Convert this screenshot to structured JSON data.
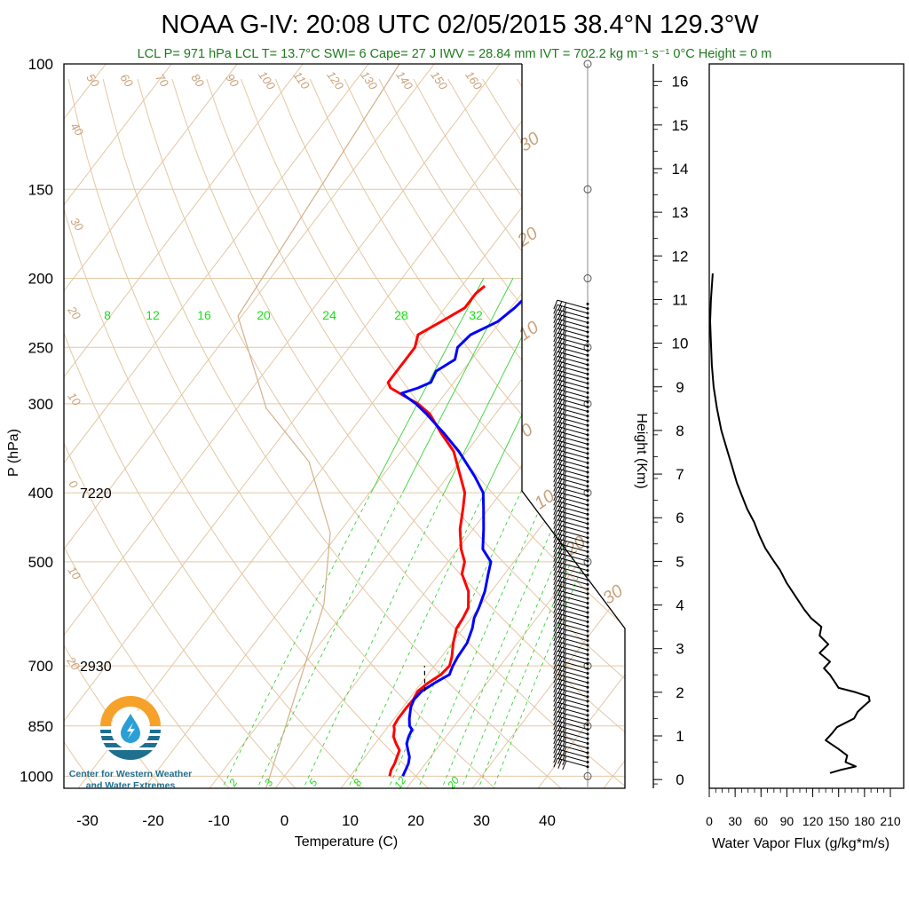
{
  "title": "NOAA G-IV: 20:08 UTC 02/05/2015  38.4°N 129.3°W",
  "subtitle": "LCL P= 971 hPa  LCL T= 13.7°C  SWI= 6  Cape= 27 J  IWV = 28.84 mm  IVT = 702.2 kg m⁻¹ s⁻¹  0°C Height = 0 m",
  "logo": {
    "line1": "Center for Western Weather",
    "line2": "and Water Extremes"
  },
  "chart_data": [
    {
      "type": "line",
      "name": "skew-T log-P sounding",
      "xlabel": "Temperature (C)",
      "ylabel": "P (hPa)",
      "xlim": [
        -33,
        50
      ],
      "ylim": [
        1030,
        100
      ],
      "y_scale": "log",
      "x_ticks": [
        -30,
        -20,
        -10,
        0,
        10,
        20,
        30,
        40
      ],
      "y_ticks": [
        100,
        150,
        200,
        250,
        300,
        400,
        500,
        700,
        850,
        1000
      ],
      "height_annotations": [
        {
          "p": 400,
          "text": "7220"
        },
        {
          "p": 700,
          "text": "2930"
        }
      ],
      "dry_adiabat_labels": [
        "50",
        "60",
        "70",
        "80",
        "90",
        "100",
        "110",
        "120",
        "130",
        "140",
        "150",
        "160",
        "40",
        "30",
        "20",
        "10",
        "0",
        "10",
        "20"
      ],
      "isotherm_labels": [
        "30",
        "20",
        "10",
        "0",
        "10",
        "20",
        "30"
      ],
      "mixing_ratio_labels_top": [
        "8",
        "12",
        "16",
        "20",
        "24",
        "28",
        "32"
      ],
      "mixing_ratio_labels_bottom": [
        "2",
        "3",
        "5",
        "8",
        "12",
        "20"
      ],
      "series": [
        {
          "name": "temperature",
          "color": "#ff0000",
          "p": [
            1000,
            980,
            960,
            940,
            920,
            900,
            880,
            860,
            850,
            830,
            800,
            780,
            760,
            740,
            720,
            700,
            680,
            650,
            620,
            600,
            580,
            550,
            520,
            500,
            480,
            450,
            420,
            400,
            380,
            350,
            330,
            310,
            300,
            290,
            285,
            280,
            270,
            260,
            250,
            240,
            230,
            220,
            210,
            205
          ],
          "t": [
            16,
            15.5,
            15.3,
            14.9,
            14.5,
            13.2,
            12,
            11.3,
            10.8,
            10.6,
            10.6,
            10.7,
            10.4,
            11,
            12,
            12.3,
            11.6,
            10.2,
            9,
            8.8,
            8.4,
            6.5,
            3.5,
            2.5,
            0.5,
            -2,
            -4,
            -5.5,
            -8,
            -12,
            -16,
            -20,
            -23,
            -27,
            -29,
            -30,
            -30,
            -30,
            -30,
            -31,
            -29,
            -27,
            -27,
            -26.5
          ]
        },
        {
          "name": "dewpoint",
          "color": "#0000ff",
          "p": [
            1000,
            980,
            960,
            940,
            920,
            900,
            880,
            860,
            850,
            830,
            800,
            780,
            760,
            740,
            720,
            700,
            680,
            650,
            620,
            600,
            580,
            550,
            520,
            500,
            480,
            450,
            420,
            400,
            380,
            350,
            330,
            310,
            300,
            290,
            285,
            280,
            270,
            260,
            250,
            240,
            230,
            220,
            210,
            205
          ],
          "t": [
            18,
            17.7,
            17.4,
            16.8,
            15.8,
            14.8,
            14.3,
            14,
            13.2,
            12.3,
            11.2,
            10.8,
            11,
            12,
            13.3,
            12.8,
            12.5,
            12.3,
            11.4,
            10.5,
            10,
            9,
            7.5,
            6.5,
            3.8,
            1.6,
            -0.9,
            -2.7,
            -5.8,
            -11.2,
            -15.6,
            -20.5,
            -23.3,
            -26.7,
            -24.8,
            -23.5,
            -24,
            -22.5,
            -23.5,
            -23,
            -20.4,
            -19.4,
            -18.8,
            -18
          ]
        },
        {
          "name": "parcel",
          "color": "#000000",
          "style": "dashed",
          "p": [
            760,
            700
          ],
          "t": [
            11.5,
            8.5
          ]
        }
      ],
      "wind_barbs": "barbs from 970 to 215 hPa; hollow circles = calm at 100, 150, 200, 250, 300, 400, 500, 700, 850, 1000 hPa"
    },
    {
      "type": "line",
      "name": "water vapor flux profile",
      "xlabel": "Water Vapor Flux (g/kg*m/s)",
      "ylabel": "Height (Km)",
      "xlim": [
        0,
        210
      ],
      "ylim": [
        -0.2,
        16.4
      ],
      "x_ticks": [
        0,
        30,
        60,
        90,
        120,
        150,
        180,
        210
      ],
      "y_ticks": [
        0,
        1,
        2,
        3,
        4,
        5,
        6,
        7,
        8,
        9,
        10,
        11,
        12,
        13,
        14,
        15,
        16
      ],
      "series": [
        {
          "name": "water vapor flux",
          "h": [
            0.15,
            0.22,
            0.3,
            0.4,
            0.55,
            0.7,
            0.9,
            1.05,
            1.2,
            1.4,
            1.55,
            1.7,
            1.8,
            1.9,
            2.0,
            2.1,
            2.25,
            2.4,
            2.55,
            2.7,
            2.9,
            3.1,
            3.3,
            3.5,
            3.7,
            3.9,
            4.2,
            4.5,
            4.8,
            5.0,
            5.3,
            5.6,
            5.9,
            6.2,
            6.5,
            6.8,
            7.2,
            7.6,
            8.0,
            8.5,
            9.0,
            9.5,
            10.0,
            10.5,
            11.0,
            11.3,
            11.6
          ],
          "flux": [
            140,
            152,
            170,
            158,
            160,
            150,
            135,
            142,
            148,
            168,
            172,
            180,
            186,
            185,
            170,
            150,
            145,
            140,
            133,
            140,
            128,
            138,
            128,
            130,
            118,
            110,
            100,
            90,
            82,
            75,
            65,
            58,
            52,
            44,
            38,
            32,
            26,
            20,
            14,
            9,
            5,
            3,
            2,
            1,
            2,
            3,
            4
          ]
        }
      ]
    }
  ]
}
